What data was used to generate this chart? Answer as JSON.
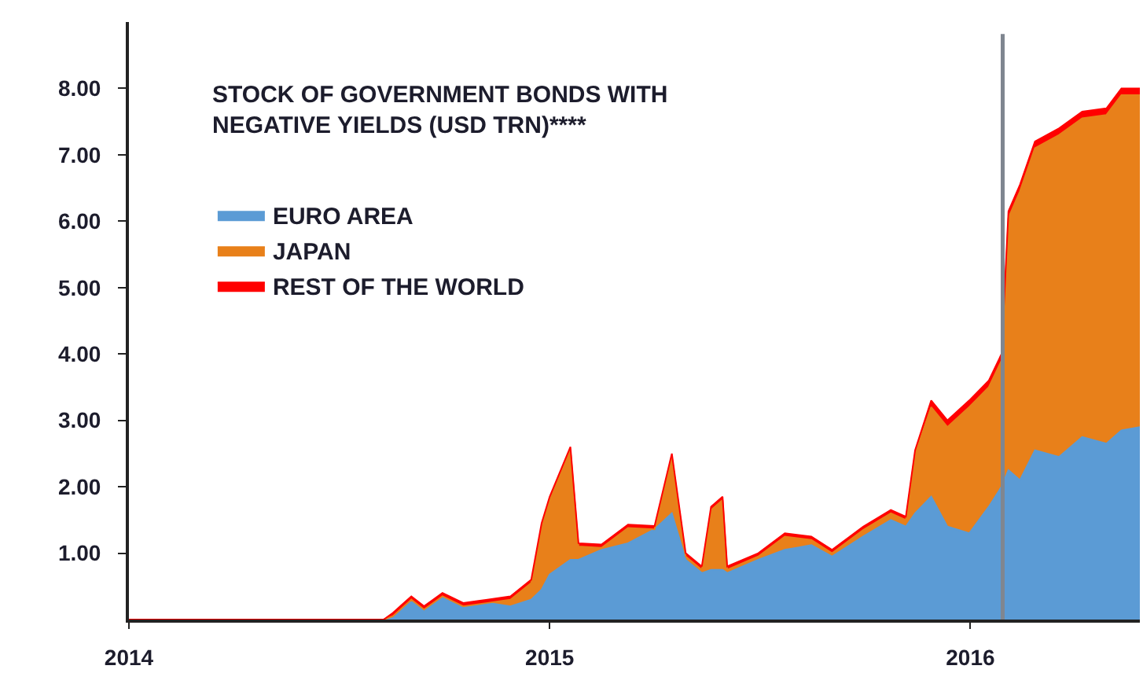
{
  "chart_data": {
    "type": "area",
    "stacked": true,
    "title": "STOCK OF GOVERNMENT BONDS WITH\nNEGATIVE YIELDS (USD TRN)****",
    "x": [
      "2014-01-01",
      "2014-08-10",
      "2014-08-18",
      "2014-09-03",
      "2014-09-14",
      "2014-09-30",
      "2014-10-18",
      "2014-11-08",
      "2014-11-28",
      "2014-12-16",
      "2014-12-25",
      "2015-01-01",
      "2015-01-19",
      "2015-01-26",
      "2015-02-15",
      "2015-03-10",
      "2015-04-02",
      "2015-04-17",
      "2015-04-29",
      "2015-05-13",
      "2015-05-21",
      "2015-05-31",
      "2015-06-04",
      "2015-07-01",
      "2015-07-24",
      "2015-08-16",
      "2015-09-03",
      "2015-09-30",
      "2015-10-24",
      "2015-11-06",
      "2015-11-14",
      "2015-11-28",
      "2015-12-12",
      "2015-12-31",
      "2016-01-17",
      "2016-01-28",
      "2016-02-03",
      "2016-02-13",
      "2016-02-26",
      "2016-03-18",
      "2016-04-07",
      "2016-04-28",
      "2016-05-11",
      "2016-05-27"
    ],
    "series": [
      {
        "name": "EURO AREA",
        "color": "#5b9bd5",
        "values": [
          0,
          0,
          0.05,
          0.3,
          0.15,
          0.35,
          0.2,
          0.25,
          0.2,
          0.3,
          0.45,
          0.68,
          0.9,
          0.9,
          1.05,
          1.15,
          1.36,
          1.6,
          0.9,
          0.7,
          0.75,
          0.75,
          0.7,
          0.9,
          1.05,
          1.12,
          0.95,
          1.25,
          1.5,
          1.4,
          1.6,
          1.85,
          1.4,
          1.3,
          1.7,
          2.0,
          2.25,
          2.1,
          2.55,
          2.45,
          2.75,
          2.65,
          2.85,
          2.9
        ]
      },
      {
        "name": "JAPAN",
        "color": "#e8801a",
        "values": [
          0,
          0,
          0,
          0,
          0,
          0,
          0,
          0,
          0.1,
          0.25,
          0.95,
          1.12,
          1.65,
          0.2,
          0.03,
          0.23,
          0,
          0.85,
          0.05,
          0.05,
          0.9,
          1.05,
          0.05,
          0.05,
          0.2,
          0.08,
          0.05,
          0.1,
          0.1,
          0.1,
          0.9,
          1.35,
          1.5,
          1.9,
          1.8,
          1.9,
          3.8,
          4.35,
          4.55,
          4.85,
          4.8,
          4.95,
          5.05,
          5.0
        ]
      },
      {
        "name": "REST OF THE WORLD",
        "color": "#ff0000",
        "values": [
          0,
          0,
          0.05,
          0.05,
          0.05,
          0.05,
          0.05,
          0.05,
          0.05,
          0.05,
          0.05,
          0.05,
          0.05,
          0.05,
          0.05,
          0.05,
          0.05,
          0.05,
          0.05,
          0.05,
          0.05,
          0.05,
          0.05,
          0.05,
          0.05,
          0.05,
          0.05,
          0.05,
          0.05,
          0.05,
          0.05,
          0.1,
          0.1,
          0.1,
          0.1,
          0.1,
          0.1,
          0.1,
          0.1,
          0.1,
          0.1,
          0.1,
          0.1,
          0.1
        ]
      }
    ],
    "xlim": [
      "2014-01-01",
      "2016-05-27"
    ],
    "xticks": [
      {
        "value": "2014-01-01",
        "label": "2014"
      },
      {
        "value": "2015-01-01",
        "label": "2015"
      },
      {
        "value": "2016-01-01",
        "label": "2016"
      }
    ],
    "ylim": [
      0,
      9
    ],
    "yticks": [
      {
        "value": 1,
        "label": "1.00"
      },
      {
        "value": 2,
        "label": "2.00"
      },
      {
        "value": 3,
        "label": "3.00"
      },
      {
        "value": 4,
        "label": "4.00"
      },
      {
        "value": 5,
        "label": "5.00"
      },
      {
        "value": 6,
        "label": "6.00"
      },
      {
        "value": 7,
        "label": "7.00"
      },
      {
        "value": 8,
        "label": "8.00"
      }
    ],
    "ref_lines": [
      {
        "axis": "x",
        "value": "2016-01-29",
        "color": "#7f8690"
      }
    ],
    "legend": "top left"
  }
}
